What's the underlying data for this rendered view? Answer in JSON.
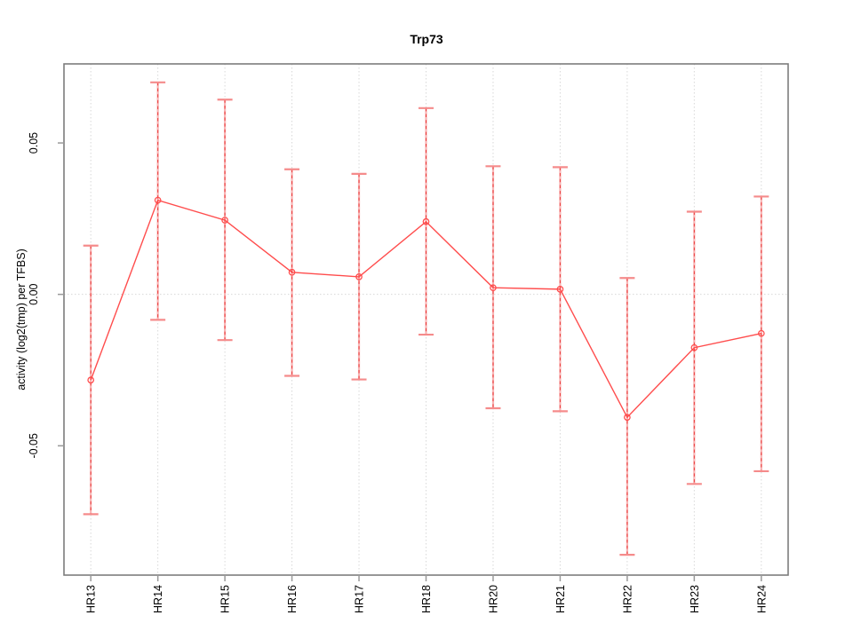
{
  "chart_data": {
    "type": "line",
    "title": "Trp73",
    "xlabel": "",
    "ylabel": "activity (log2(tmp) per TFBS)",
    "categories": [
      "HR13",
      "HR14",
      "HR15",
      "HR16",
      "HR17",
      "HR18",
      "HR20",
      "HR21",
      "HR22",
      "HR23",
      "HR24"
    ],
    "values": [
      -0.0283,
      0.0311,
      0.0245,
      0.0073,
      0.0058,
      0.024,
      0.0022,
      0.0017,
      -0.0406,
      -0.0176,
      -0.0129
    ],
    "upper": [
      0.0161,
      0.07,
      0.0643,
      0.0413,
      0.0398,
      0.0615,
      0.0423,
      0.042,
      0.0054,
      0.0273,
      0.0323
    ],
    "lower": [
      -0.0726,
      -0.0084,
      -0.0151,
      -0.0269,
      -0.0281,
      -0.0133,
      -0.0376,
      -0.0386,
      -0.086,
      -0.0626,
      -0.0584
    ],
    "yticks": [
      -0.05,
      0,
      0.05
    ],
    "ytick_labels": [
      "-0.05",
      "0.00",
      "0.05"
    ],
    "ylim": [
      -0.0927,
      0.0761
    ],
    "legend": "none",
    "grid": {
      "vertical_at_categories": true,
      "horizontal_at_zero": true,
      "style": "dotted"
    }
  },
  "colors": {
    "series": "#ff4d4d",
    "error_bar_solid": "#f8b4b4",
    "error_bar_dash": "#ea3b3b",
    "error_bar_cap": "#f58b8b",
    "plot_border": "#7d7d7d",
    "axis_tick": "#9a9a9a",
    "grid_line": "#d8d8d8",
    "text": "#000000"
  }
}
